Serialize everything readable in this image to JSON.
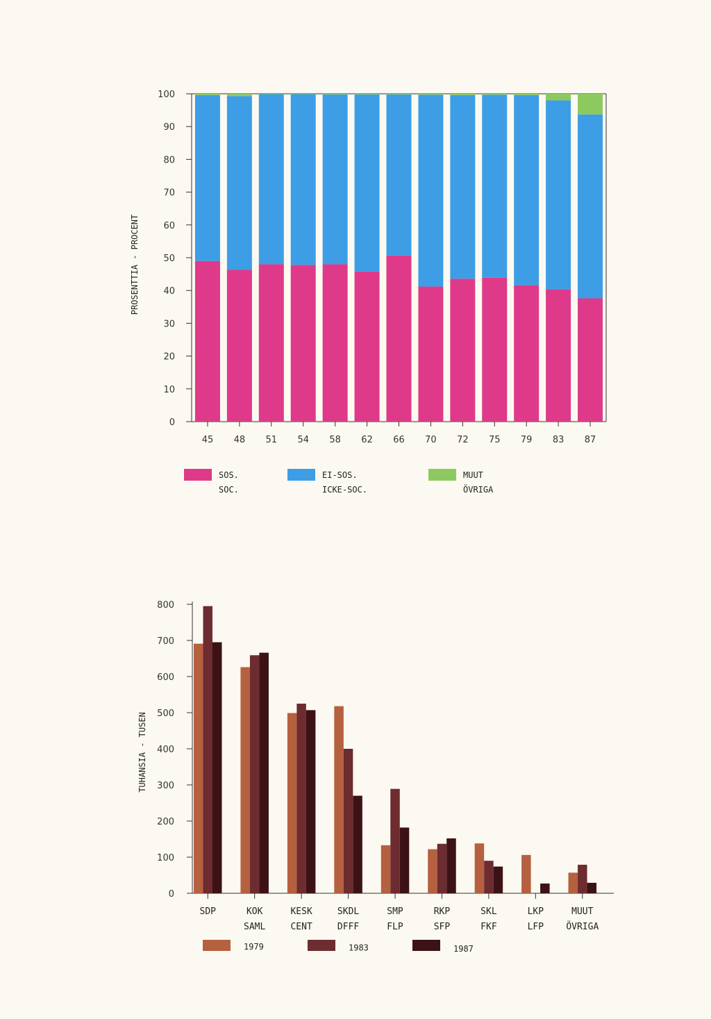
{
  "chart_data": [
    {
      "type": "bar",
      "stacked": true,
      "ylabel": "PROSENTTIA - PROCENT",
      "ylim": [
        0,
        100
      ],
      "yticks": [
        "0",
        "10",
        "20",
        "30",
        "40",
        "50",
        "60",
        "70",
        "80",
        "90",
        "100"
      ],
      "categories": [
        "45",
        "48",
        "51",
        "54",
        "58",
        "62",
        "66",
        "70",
        "72",
        "75",
        "79",
        "83",
        "87"
      ],
      "series": [
        {
          "name": "SOS.\nSOC.",
          "name_lines": [
            "SOS.",
            "SOC."
          ],
          "color": "#df3a89",
          "values": [
            49,
            46.3,
            48,
            47.8,
            48,
            45.8,
            50.7,
            41.2,
            43.6,
            43.9,
            41.6,
            40.4,
            37.6
          ]
        },
        {
          "name": "EI-SOS.\nICKE-SOC.",
          "name_lines": [
            "EI-SOS.",
            "ICKE-SOC."
          ],
          "color": "#3d9ee6",
          "values": [
            50.6,
            53,
            51.9,
            52.1,
            51.8,
            54,
            49.1,
            58.5,
            56,
            55.8,
            58,
            57.6,
            56.1
          ]
        },
        {
          "name": "MUUT\nÖVRIGA",
          "name_lines": [
            "MUUT",
            "ÖVRIGA"
          ],
          "color": "#8dc95e",
          "values": [
            0.4,
            0.7,
            0.1,
            0.1,
            0.2,
            0.2,
            0.2,
            0.3,
            0.4,
            0.3,
            0.4,
            2,
            6.3
          ]
        }
      ],
      "legend_position": "bottom"
    },
    {
      "type": "bar",
      "ylabel": "TUHANSIA - TUSEN",
      "ylim": [
        0,
        800
      ],
      "yticks": [
        "0",
        "100",
        "200",
        "300",
        "400",
        "500",
        "600",
        "700",
        "800"
      ],
      "categories": [
        {
          "lines": [
            "SDP"
          ]
        },
        {
          "lines": [
            "KOK",
            "SAML"
          ]
        },
        {
          "lines": [
            "KESK",
            "CENT"
          ]
        },
        {
          "lines": [
            "SKDL",
            "DFFF"
          ]
        },
        {
          "lines": [
            "SMP",
            "FLP"
          ]
        },
        {
          "lines": [
            "RKP",
            "SFP"
          ]
        },
        {
          "lines": [
            "SKL",
            "FKF"
          ]
        },
        {
          "lines": [
            "LKP",
            "LFP"
          ]
        },
        {
          "lines": [
            "MUUT",
            "ÖVRIGA"
          ]
        }
      ],
      "series": [
        {
          "name": "1979",
          "color": "#b5603f",
          "values": [
            691,
            626,
            499,
            518,
            133,
            122,
            138,
            106,
            57
          ]
        },
        {
          "name": "1983",
          "color": "#6d2c30",
          "values": [
            795,
            659,
            525,
            400,
            289,
            137,
            90,
            null,
            79
          ]
        },
        {
          "name": "1987",
          "color": "#3c1216",
          "values": [
            695,
            666,
            507,
            270,
            182,
            152,
            74,
            27,
            29
          ]
        }
      ],
      "legend_position": "bottom"
    }
  ]
}
